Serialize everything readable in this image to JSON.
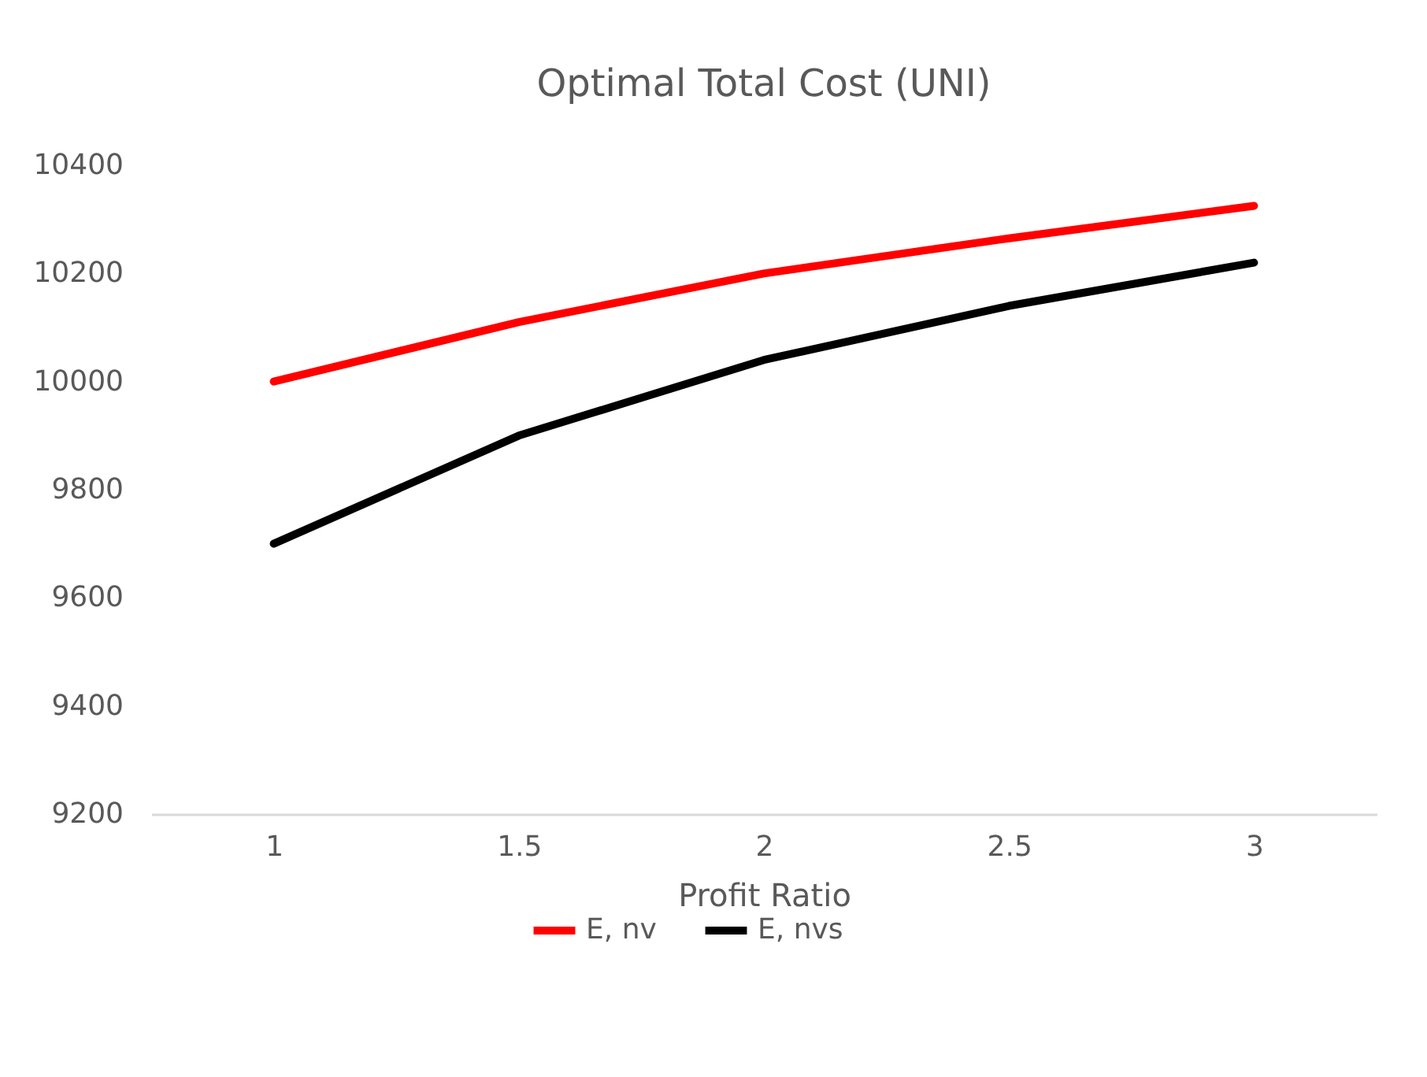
{
  "chart_data": {
    "type": "line",
    "title": "Optimal Total Cost (UNI)",
    "xlabel": "Profit Ratio",
    "categories": [
      "1",
      "1.5",
      "2",
      "2.5",
      "3"
    ],
    "series": [
      {
        "name": "E, nv",
        "color": "#ff0000",
        "values": [
          10000,
          10110,
          10200,
          10265,
          10325
        ]
      },
      {
        "name": "E, nvs",
        "color": "#000000",
        "values": [
          9700,
          9900,
          10040,
          10140,
          10220
        ]
      }
    ],
    "ylim": [
      9200,
      10400
    ],
    "yticks": [
      9200,
      9400,
      9600,
      9800,
      10000,
      10200,
      10400
    ],
    "grid": false,
    "legend": "bottom",
    "marker": "none",
    "line_style": "solid"
  }
}
